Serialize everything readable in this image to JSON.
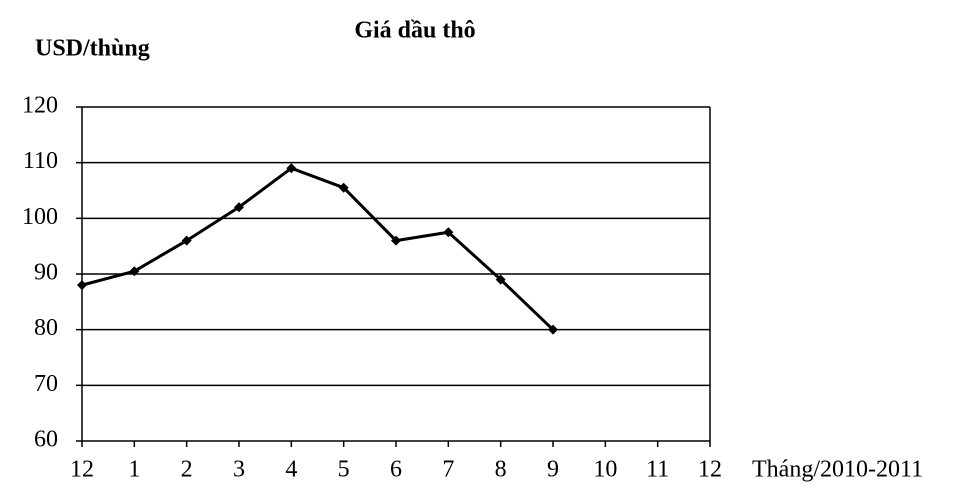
{
  "chart_data": {
    "type": "line",
    "title": "Giá dầu thô",
    "y_label": "USD/thùng",
    "x_label": "Tháng/2010-2011",
    "categories": [
      "12",
      "1",
      "2",
      "3",
      "4",
      "5",
      "6",
      "7",
      "8",
      "9",
      "10",
      "11",
      "12"
    ],
    "series": [
      {
        "name": "Giá dầu thô",
        "color": "#000000",
        "values": [
          88,
          90.5,
          96,
          102,
          109,
          105.5,
          96,
          97.5,
          89,
          80,
          null,
          null,
          null
        ]
      }
    ],
    "ylim": [
      60,
      120
    ],
    "yticks": [
      60,
      70,
      80,
      90,
      100,
      110,
      120
    ],
    "grid": true
  }
}
